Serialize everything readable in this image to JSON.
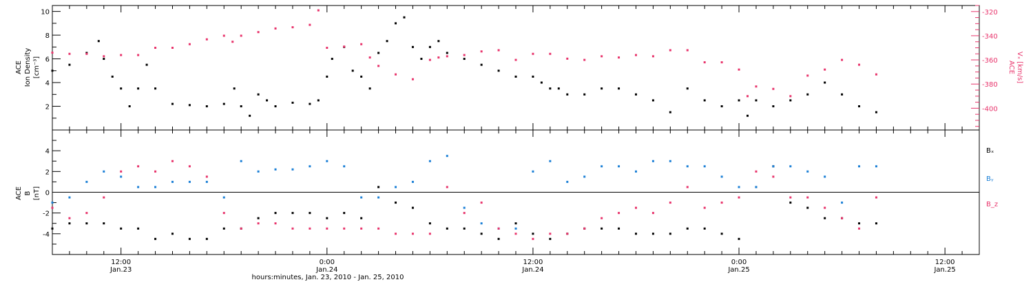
{
  "xlabel": "hours:minutes, Jan. 23, 2010 - Jan. 25, 2010",
  "x_ticks": [
    {
      "t": 12,
      "time": "12:00",
      "date": "Jan.23"
    },
    {
      "t": 24,
      "time": "0:00",
      "date": "Jan.24"
    },
    {
      "t": 36,
      "time": "12:00",
      "date": "Jan.24"
    },
    {
      "t": 48,
      "time": "0:00",
      "date": "Jan.25"
    },
    {
      "t": 60,
      "time": "12:00",
      "date": "Jan.25"
    }
  ],
  "colors": {
    "black": "#000000",
    "red": "#e8336b",
    "blue": "#1a7fd6"
  },
  "chart_data": [
    {
      "type": "scatter",
      "title": "",
      "xlim": [
        8,
        62
      ],
      "x_unit": "hours since Jan. 23, 2010 00:00",
      "left_axis": {
        "label_lines": [
          "ACE",
          "Ion Density",
          "[cm⁻³]"
        ],
        "ylim": [
          0,
          10.5
        ],
        "ticks": [
          2,
          4,
          6,
          8,
          10
        ]
      },
      "right_axis": {
        "label_lines": [
          "ACE",
          "Vₓ [km/s]"
        ],
        "ylim": [
          -418,
          -315
        ],
        "ticks": [
          -400,
          -380,
          -360,
          -340,
          -320
        ],
        "color": "#e8336b"
      },
      "series": [
        {
          "name": "Ion Density",
          "axis": "left",
          "color": "#000000",
          "x": [
            8,
            9,
            10,
            10.7,
            11,
            11.5,
            12,
            12.5,
            13,
            13.5,
            14,
            15,
            16,
            17,
            18,
            18.6,
            19,
            19.5,
            20,
            20.5,
            21,
            22,
            23,
            23.5,
            24,
            24.3,
            25,
            25.5,
            26,
            26.5,
            27,
            27.5,
            28,
            28.5,
            29,
            29.5,
            30,
            30.5,
            31,
            32,
            33,
            34,
            35,
            36,
            36.5,
            37,
            37.5,
            38,
            39,
            40,
            41,
            42,
            43,
            44,
            45,
            46,
            47,
            48,
            48.5,
            49,
            50,
            51,
            52,
            53,
            54,
            55,
            56
          ],
          "y": [
            5.0,
            5.5,
            6.5,
            7.5,
            6.0,
            4.5,
            3.5,
            2.0,
            3.5,
            5.5,
            3.5,
            2.2,
            2.1,
            2.0,
            2.2,
            3.5,
            2.0,
            1.2,
            3.0,
            2.5,
            2.0,
            2.3,
            2.2,
            2.5,
            4.5,
            6.0,
            7.0,
            5.0,
            4.5,
            3.5,
            6.5,
            7.5,
            9.0,
            9.5,
            7.0,
            6.0,
            7.0,
            7.5,
            6.5,
            6.0,
            5.5,
            5.0,
            4.5,
            4.5,
            4.0,
            3.5,
            3.5,
            3.0,
            3.0,
            3.5,
            3.5,
            3.0,
            2.5,
            1.5,
            3.5,
            2.5,
            2.0,
            2.5,
            1.2,
            2.5,
            2.0,
            2.5,
            3.0,
            4.0,
            3.0,
            2.0,
            1.5
          ]
        },
        {
          "name": "Vₓ",
          "axis": "right",
          "color": "#e8336b",
          "x": [
            8,
            9,
            10,
            11,
            12,
            13,
            14,
            15,
            16,
            17,
            18,
            18.5,
            19,
            20,
            21,
            22,
            23,
            23.5,
            24,
            25,
            26,
            26.5,
            27,
            28,
            29,
            30,
            30.5,
            31,
            32,
            33,
            34,
            35,
            36,
            37,
            38,
            39,
            40,
            41,
            42,
            43,
            44,
            45,
            46,
            47,
            48,
            48.5,
            49,
            50,
            51,
            52,
            53,
            54,
            55,
            56
          ],
          "y": [
            -354,
            -355,
            -355,
            -357,
            -356,
            -356,
            -350,
            -350,
            -347,
            -343,
            -340,
            -345,
            -340,
            -337,
            -334,
            -333,
            -331,
            -319,
            -350,
            -349,
            -347,
            -358,
            -365,
            -372,
            -376,
            -360,
            -358,
            -357,
            -356,
            -353,
            -352,
            -360,
            -355,
            -355,
            -359,
            -360,
            -357,
            -358,
            -356,
            -357,
            -352,
            -352,
            -362,
            -362,
            -368,
            -390,
            -382,
            -384,
            -390,
            -373,
            -368,
            -360,
            -364,
            -372
          ]
        }
      ]
    },
    {
      "type": "scatter",
      "title": "",
      "xlim": [
        8,
        62
      ],
      "x_unit": "hours since Jan. 23, 2010 00:00",
      "left_axis": {
        "label_lines": [
          "ACE",
          "B",
          "[nT]"
        ],
        "ylim": [
          -6,
          6
        ],
        "ticks": [
          -4,
          -2,
          0,
          2,
          4
        ],
        "zero_line": true
      },
      "legend": {
        "placement": "right",
        "entries": [
          {
            "name": "Bₓ",
            "color": "#000000"
          },
          {
            "name": "Bᵧ",
            "color": "#1a7fd6"
          },
          {
            "name": "B_z",
            "color": "#e8336b"
          }
        ]
      },
      "series": [
        {
          "name": "Bₓ",
          "color": "#000000",
          "x": [
            8,
            9,
            10,
            11,
            12,
            13,
            14,
            15,
            16,
            17,
            18,
            19,
            20,
            21,
            22,
            23,
            24,
            25,
            26,
            27,
            28,
            29,
            30,
            31,
            32,
            33,
            34,
            35,
            36,
            37,
            38,
            39,
            40,
            41,
            42,
            43,
            44,
            45,
            46,
            47,
            48,
            49,
            50,
            51,
            52,
            53,
            54,
            55,
            56
          ],
          "y": [
            -3.5,
            -3.0,
            -3.0,
            -3.0,
            -3.5,
            -3.5,
            -4.5,
            -4.0,
            -4.5,
            -4.5,
            -3.5,
            -3.5,
            -2.5,
            -2.0,
            -2.0,
            -2.0,
            -2.5,
            -2.0,
            -2.5,
            0.5,
            -1.0,
            -1.5,
            -3.0,
            -3.5,
            -3.5,
            -4.0,
            -4.5,
            -3.0,
            -4.0,
            -4.5,
            -4.0,
            -3.5,
            -3.5,
            -3.5,
            -4.0,
            -4.0,
            -4.0,
            -3.5,
            -3.5,
            -4.0,
            -4.5,
            0.5,
            2.5,
            -1.0,
            -1.5,
            -2.5,
            -2.5,
            -3.0,
            -3.0
          ]
        },
        {
          "name": "Bᵧ",
          "color": "#1a7fd6",
          "x": [
            8,
            9,
            10,
            11,
            12,
            13,
            14,
            15,
            16,
            17,
            18,
            19,
            20,
            21,
            22,
            23,
            24,
            25,
            26,
            27,
            28,
            29,
            30,
            31,
            32,
            33,
            34,
            35,
            36,
            37,
            38,
            39,
            40,
            41,
            42,
            43,
            44,
            45,
            46,
            47,
            48,
            49,
            50,
            51,
            52,
            53,
            54,
            55,
            56
          ],
          "y": [
            -1.0,
            -0.5,
            1.0,
            2.0,
            1.5,
            0.5,
            0.5,
            1.0,
            1.0,
            1.0,
            -0.5,
            3.0,
            2.0,
            2.2,
            2.2,
            2.5,
            3.0,
            2.5,
            -0.5,
            -0.5,
            0.5,
            1.0,
            3.0,
            3.5,
            -1.5,
            -3.0,
            -3.5,
            -3.5,
            2.0,
            3.0,
            1.0,
            1.5,
            2.5,
            2.5,
            2.0,
            3.0,
            3.0,
            2.5,
            2.5,
            1.5,
            0.5,
            0.5,
            2.5,
            2.5,
            2.0,
            1.5,
            -1.0,
            2.5,
            2.5
          ]
        },
        {
          "name": "B_z",
          "color": "#e8336b",
          "x": [
            8,
            9,
            10,
            11,
            12,
            13,
            14,
            15,
            16,
            17,
            18,
            19,
            20,
            21,
            22,
            23,
            24,
            25,
            26,
            27,
            28,
            29,
            30,
            31,
            32,
            33,
            34,
            35,
            36,
            37,
            38,
            39,
            40,
            41,
            42,
            43,
            44,
            45,
            46,
            47,
            48,
            49,
            50,
            51,
            52,
            53,
            54,
            55,
            56
          ],
          "y": [
            -1.5,
            -2.5,
            -2.0,
            -0.5,
            2.0,
            2.5,
            2.0,
            3.0,
            2.5,
            1.5,
            -2.0,
            -3.5,
            -3.0,
            -3.0,
            -3.5,
            -3.5,
            -3.5,
            -3.5,
            -3.5,
            -3.5,
            -4.0,
            -4.0,
            -4.0,
            0.5,
            -2.0,
            -1.0,
            -3.5,
            -4.0,
            -4.5,
            -4.0,
            -4.0,
            -3.5,
            -2.5,
            -2.0,
            -1.5,
            -2.0,
            -1.0,
            0.5,
            -1.5,
            -1.0,
            -0.5,
            2.0,
            1.5,
            -0.5,
            -0.5,
            -1.5,
            -2.5,
            -3.5,
            -0.5
          ]
        }
      ]
    }
  ]
}
